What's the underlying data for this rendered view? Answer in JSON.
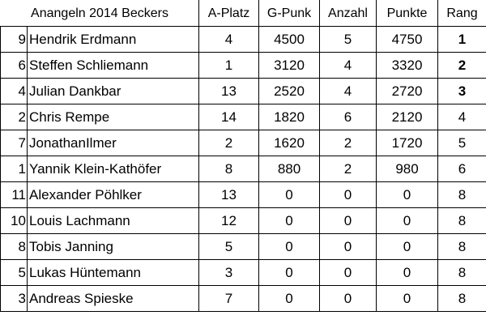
{
  "table": {
    "title": "Anangeln 2014 Beckers",
    "columns": [
      "A-Platz",
      "G-Punk",
      "Anzahl",
      "Punkte",
      "Rang"
    ],
    "rows": [
      {
        "idx": "9",
        "name": "Hendrik Erdmann",
        "aplatz": "4",
        "gpunk": "4500",
        "anzahl": "5",
        "punkte": "4750",
        "rang": "1",
        "rang_bold": true
      },
      {
        "idx": "6",
        "name": "Steffen Schliemann",
        "aplatz": "1",
        "gpunk": "3120",
        "anzahl": "4",
        "punkte": "3320",
        "rang": "2",
        "rang_bold": true
      },
      {
        "idx": "4",
        "name": "Julian Dankbar",
        "aplatz": "13",
        "gpunk": "2520",
        "anzahl": "4",
        "punkte": "2720",
        "rang": "3",
        "rang_bold": true
      },
      {
        "idx": "2",
        "name": "Chris Rempe",
        "aplatz": "14",
        "gpunk": "1820",
        "anzahl": "6",
        "punkte": "2120",
        "rang": "4",
        "rang_bold": false
      },
      {
        "idx": "7",
        "name": "JonathanIlmer",
        "aplatz": "2",
        "gpunk": "1620",
        "anzahl": "2",
        "punkte": "1720",
        "rang": "5",
        "rang_bold": false
      },
      {
        "idx": "1",
        "name": "Yannik Klein-Kathöfer",
        "aplatz": "8",
        "gpunk": "880",
        "anzahl": "2",
        "punkte": "980",
        "rang": "6",
        "rang_bold": false
      },
      {
        "idx": "11",
        "name": "Alexander Pöhlker",
        "aplatz": "13",
        "gpunk": "0",
        "anzahl": "0",
        "punkte": "0",
        "rang": "8",
        "rang_bold": false
      },
      {
        "idx": "10",
        "name": "Louis Lachmann",
        "aplatz": "12",
        "gpunk": "0",
        "anzahl": "0",
        "punkte": "0",
        "rang": "8",
        "rang_bold": false
      },
      {
        "idx": "8",
        "name": "Tobis Janning",
        "aplatz": "5",
        "gpunk": "0",
        "anzahl": "0",
        "punkte": "0",
        "rang": "8",
        "rang_bold": false
      },
      {
        "idx": "5",
        "name": "Lukas Hüntemann",
        "aplatz": "3",
        "gpunk": "0",
        "anzahl": "0",
        "punkte": "0",
        "rang": "8",
        "rang_bold": false
      },
      {
        "idx": "3",
        "name": "Andreas Spieske",
        "aplatz": "7",
        "gpunk": "0",
        "anzahl": "0",
        "punkte": "0",
        "rang": "8",
        "rang_bold": false
      }
    ]
  }
}
